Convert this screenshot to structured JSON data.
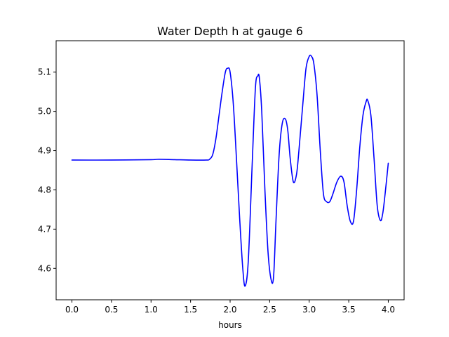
{
  "chart_data": {
    "type": "line",
    "title": "Water Depth h at gauge 6",
    "xlabel": "hours",
    "ylabel": "",
    "xlim": [
      -0.2,
      4.2
    ],
    "ylim": [
      4.52,
      5.18
    ],
    "x_ticks": [
      0.0,
      0.5,
      1.0,
      1.5,
      2.0,
      2.5,
      3.0,
      3.5,
      4.0
    ],
    "x_tick_labels": [
      "0.0",
      "0.5",
      "1.0",
      "1.5",
      "2.0",
      "2.5",
      "3.0",
      "3.5",
      "4.0"
    ],
    "y_ticks": [
      4.6,
      4.7,
      4.8,
      4.9,
      5.0,
      5.1
    ],
    "y_tick_labels": [
      "4.6",
      "4.7",
      "4.8",
      "4.9",
      "5.0",
      "5.1"
    ],
    "grid": false,
    "series": [
      {
        "color": "#0000ff",
        "x": [
          0.0,
          0.5,
          1.0,
          1.1,
          1.3,
          1.5,
          1.7,
          1.74,
          1.78,
          1.82,
          1.86,
          1.9,
          1.94,
          1.97,
          2.0,
          2.04,
          2.08,
          2.12,
          2.16,
          2.19,
          2.23,
          2.28,
          2.32,
          2.35,
          2.37,
          2.4,
          2.44,
          2.48,
          2.52,
          2.55,
          2.58,
          2.62,
          2.66,
          2.7,
          2.73,
          2.76,
          2.8,
          2.84,
          2.87,
          2.92,
          2.96,
          3.0,
          3.03,
          3.06,
          3.1,
          3.14,
          3.18,
          3.22,
          3.26,
          3.3,
          3.35,
          3.4,
          3.44,
          3.48,
          3.52,
          3.56,
          3.6,
          3.64,
          3.68,
          3.72,
          3.74,
          3.78,
          3.82,
          3.86,
          3.9,
          3.93,
          3.96,
          4.0
        ],
        "y": [
          4.876,
          4.876,
          4.877,
          4.878,
          4.877,
          4.876,
          4.876,
          4.878,
          4.89,
          4.93,
          4.99,
          5.05,
          5.1,
          5.11,
          5.1,
          5.02,
          4.88,
          4.73,
          4.6,
          4.555,
          4.62,
          4.87,
          5.06,
          5.09,
          5.085,
          5.0,
          4.8,
          4.64,
          4.57,
          4.58,
          4.72,
          4.89,
          4.97,
          4.98,
          4.95,
          4.88,
          4.82,
          4.84,
          4.9,
          5.02,
          5.11,
          5.14,
          5.14,
          5.12,
          5.04,
          4.9,
          4.79,
          4.77,
          4.77,
          4.79,
          4.82,
          4.835,
          4.82,
          4.76,
          4.72,
          4.72,
          4.8,
          4.91,
          4.99,
          5.025,
          5.028,
          4.99,
          4.88,
          4.76,
          4.722,
          4.74,
          4.79,
          4.868
        ]
      }
    ]
  }
}
